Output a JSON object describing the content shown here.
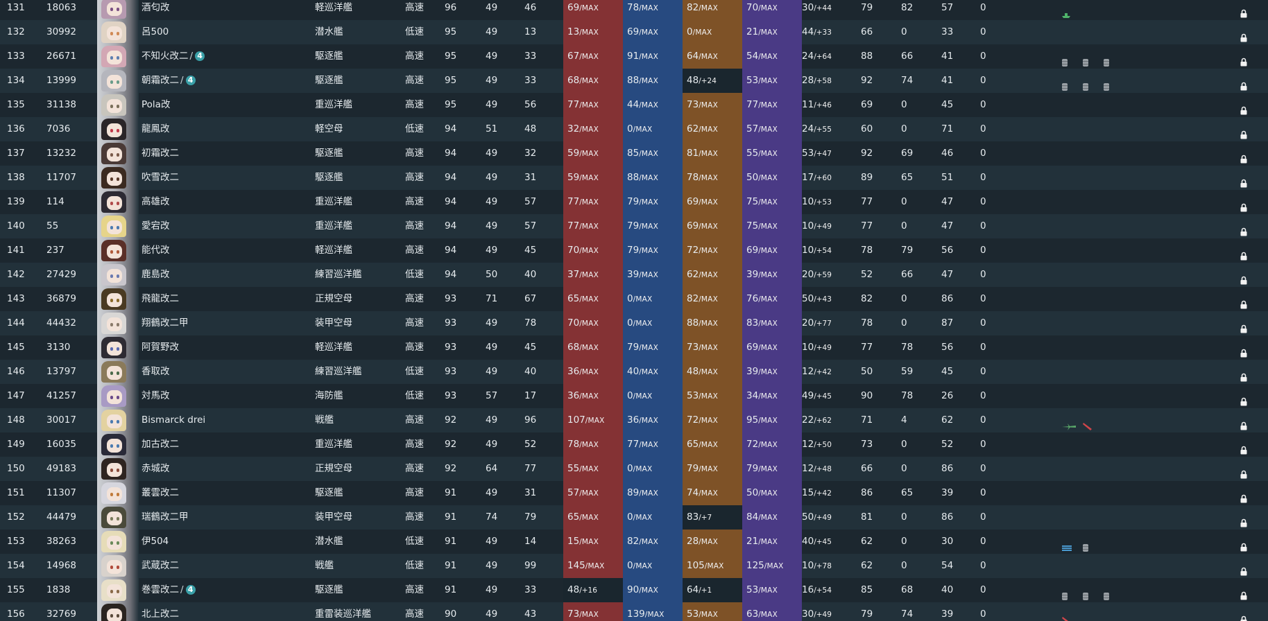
{
  "colors": {
    "firepower": "#843234",
    "torpedo": "#274a80",
    "anti_air": "#7e5227",
    "armor": "#4a3a85"
  },
  "max_label": "MAX",
  "rows": [
    {
      "num": "131",
      "id": "18063",
      "name": "酒匂改",
      "type": "軽巡洋艦",
      "speed": "高速",
      "lv": "96",
      "morale": "49",
      "hp": "46",
      "fp": "69",
      "fp_s": "/MAX",
      "tp": "78",
      "tp_s": "/MAX",
      "aa": "82",
      "aa_s": "/MAX",
      "ar": "70",
      "ar_s": "/MAX",
      "luck": "30",
      "luck_s": "/+44",
      "ev": "79",
      "asw": "82",
      "los": "57",
      "ex": "0",
      "hair": "#b79ab0",
      "eye": "#7a4f83",
      "equips": [
        "ship-icon-green"
      ]
    },
    {
      "num": "132",
      "id": "30992",
      "name": "呂500",
      "type": "潜水艦",
      "speed": "低速",
      "lv": "95",
      "morale": "49",
      "hp": "13",
      "fp": "13",
      "fp_s": "/MAX",
      "tp": "69",
      "tp_s": "/MAX",
      "aa": "0",
      "aa_s": "/MAX",
      "ar": "21",
      "ar_s": "/MAX",
      "luck": "44",
      "luck_s": "/+33",
      "ev": "66",
      "asw": "0",
      "los": "33",
      "ex": "0",
      "hair": "#e0d3c4",
      "eye": "#d08a55",
      "equips": []
    },
    {
      "num": "133",
      "id": "26671",
      "name": "不知火改二",
      "badge": "4",
      "type": "駆逐艦",
      "speed": "高速",
      "lv": "95",
      "morale": "49",
      "hp": "33",
      "fp": "67",
      "fp_s": "/MAX",
      "tp": "91",
      "tp_s": "/MAX",
      "aa": "64",
      "aa_s": "/MAX",
      "ar": "54",
      "ar_s": "/MAX",
      "luck": "24",
      "luck_s": "/+64",
      "ev": "88",
      "asw": "66",
      "los": "41",
      "ex": "0",
      "hair": "#d3a7b4",
      "eye": "#5d7fb0",
      "equips": [
        "drum-icon",
        "drum-icon",
        "drum-icon"
      ]
    },
    {
      "num": "134",
      "id": "13999",
      "name": "朝霜改二",
      "badge": "4",
      "type": "駆逐艦",
      "speed": "高速",
      "lv": "95",
      "morale": "49",
      "hp": "33",
      "fp": "68",
      "fp_s": "/MAX",
      "tp": "88",
      "tp_s": "/MAX",
      "aa": "48",
      "aa_s": "/+24",
      "aa_dark": true,
      "ar": "53",
      "ar_s": "/MAX",
      "luck": "28",
      "luck_s": "/+58",
      "ev": "92",
      "asw": "74",
      "los": "41",
      "ex": "0",
      "hair": "#b5b6bd",
      "eye": "#6a9c8a",
      "equips": [
        "drum-icon",
        "drum-icon",
        "drum-icon"
      ]
    },
    {
      "num": "135",
      "id": "31138",
      "name": "Pola改",
      "type": "重巡洋艦",
      "speed": "高速",
      "lv": "95",
      "morale": "49",
      "hp": "56",
      "fp": "77",
      "fp_s": "/MAX",
      "tp": "44",
      "tp_s": "/MAX",
      "aa": "73",
      "aa_s": "/MAX",
      "ar": "77",
      "ar_s": "/MAX",
      "luck": "11",
      "luck_s": "/+46",
      "ev": "69",
      "asw": "0",
      "los": "45",
      "ex": "0",
      "hair": "#c8c5bd",
      "eye": "#7a6f5a",
      "equips": []
    },
    {
      "num": "136",
      "id": "7036",
      "name": "龍鳳改",
      "type": "軽空母",
      "speed": "低速",
      "lv": "94",
      "morale": "51",
      "hp": "48",
      "fp": "32",
      "fp_s": "/MAX",
      "tp": "0",
      "tp_s": "/MAX",
      "aa": "62",
      "aa_s": "/MAX",
      "ar": "57",
      "ar_s": "/MAX",
      "luck": "24",
      "luck_s": "/+55",
      "ev": "60",
      "asw": "0",
      "los": "71",
      "ex": "0",
      "hair": "#2a2528",
      "eye": "#c23a4a",
      "equips": []
    },
    {
      "num": "137",
      "id": "13232",
      "name": "初霜改二",
      "type": "駆逐艦",
      "speed": "高速",
      "lv": "94",
      "morale": "49",
      "hp": "32",
      "fp": "59",
      "fp_s": "/MAX",
      "tp": "85",
      "tp_s": "/MAX",
      "aa": "81",
      "aa_s": "/MAX",
      "ar": "55",
      "ar_s": "/MAX",
      "luck": "53",
      "luck_s": "/+47",
      "ev": "92",
      "asw": "69",
      "los": "46",
      "ex": "0",
      "hair": "#4a3a36",
      "eye": "#7a5a4a",
      "equips": []
    },
    {
      "num": "138",
      "id": "11707",
      "name": "吹雪改二",
      "type": "駆逐艦",
      "speed": "高速",
      "lv": "94",
      "morale": "49",
      "hp": "31",
      "fp": "59",
      "fp_s": "/MAX",
      "tp": "88",
      "tp_s": "/MAX",
      "aa": "78",
      "aa_s": "/MAX",
      "ar": "50",
      "ar_s": "/MAX",
      "luck": "17",
      "luck_s": "/+60",
      "ev": "89",
      "asw": "65",
      "los": "51",
      "ex": "0",
      "hair": "#3b2a20",
      "eye": "#5a3a2a",
      "equips": []
    },
    {
      "num": "139",
      "id": "114",
      "name": "高雄改",
      "type": "重巡洋艦",
      "speed": "高速",
      "lv": "94",
      "morale": "49",
      "hp": "57",
      "fp": "77",
      "fp_s": "/MAX",
      "tp": "79",
      "tp_s": "/MAX",
      "aa": "69",
      "aa_s": "/MAX",
      "ar": "75",
      "ar_s": "/MAX",
      "luck": "10",
      "luck_s": "/+53",
      "ev": "77",
      "asw": "0",
      "los": "47",
      "ex": "0",
      "hair": "#2c2a33",
      "eye": "#b04a4a",
      "equips": []
    },
    {
      "num": "140",
      "id": "55",
      "name": "愛宕改",
      "type": "重巡洋艦",
      "speed": "高速",
      "lv": "94",
      "morale": "49",
      "hp": "57",
      "fp": "77",
      "fp_s": "/MAX",
      "tp": "79",
      "tp_s": "/MAX",
      "aa": "69",
      "aa_s": "/MAX",
      "ar": "75",
      "ar_s": "/MAX",
      "luck": "10",
      "luck_s": "/+49",
      "ev": "77",
      "asw": "0",
      "los": "47",
      "ex": "0",
      "hair": "#e6d48a",
      "eye": "#4a7ab0",
      "equips": []
    },
    {
      "num": "141",
      "id": "237",
      "name": "能代改",
      "type": "軽巡洋艦",
      "speed": "高速",
      "lv": "94",
      "morale": "49",
      "hp": "45",
      "fp": "70",
      "fp_s": "/MAX",
      "tp": "79",
      "tp_s": "/MAX",
      "aa": "72",
      "aa_s": "/MAX",
      "ar": "69",
      "ar_s": "/MAX",
      "luck": "10",
      "luck_s": "/+54",
      "ev": "78",
      "asw": "79",
      "los": "56",
      "ex": "0",
      "hair": "#5a2f28",
      "eye": "#b05a3a",
      "equips": []
    },
    {
      "num": "142",
      "id": "27429",
      "name": "鹿島改",
      "type": "練習巡洋艦",
      "speed": "低速",
      "lv": "94",
      "morale": "50",
      "hp": "40",
      "fp": "37",
      "fp_s": "/MAX",
      "tp": "39",
      "tp_s": "/MAX",
      "aa": "62",
      "aa_s": "/MAX",
      "ar": "39",
      "ar_s": "/MAX",
      "luck": "20",
      "luck_s": "/+59",
      "ev": "52",
      "asw": "66",
      "los": "47",
      "ex": "0",
      "hair": "#c9c6cc",
      "eye": "#6a7ab0",
      "equips": []
    },
    {
      "num": "143",
      "id": "36879",
      "name": "飛龍改二",
      "type": "正規空母",
      "speed": "高速",
      "lv": "93",
      "morale": "71",
      "hp": "67",
      "fp": "65",
      "fp_s": "/MAX",
      "tp": "0",
      "tp_s": "/MAX",
      "aa": "82",
      "aa_s": "/MAX",
      "ar": "76",
      "ar_s": "/MAX",
      "luck": "50",
      "luck_s": "/+43",
      "ev": "82",
      "asw": "0",
      "los": "86",
      "ex": "0",
      "hair": "#4a3a22",
      "eye": "#8a6a2a",
      "equips": []
    },
    {
      "num": "144",
      "id": "44432",
      "name": "翔鶴改二甲",
      "type": "装甲空母",
      "speed": "高速",
      "lv": "93",
      "morale": "49",
      "hp": "78",
      "fp": "70",
      "fp_s": "/MAX",
      "tp": "0",
      "tp_s": "/MAX",
      "aa": "88",
      "aa_s": "/MAX",
      "ar": "83",
      "ar_s": "/MAX",
      "luck": "20",
      "luck_s": "/+77",
      "ev": "78",
      "asw": "0",
      "los": "87",
      "ex": "0",
      "hair": "#d9d7d5",
      "eye": "#8a7a6a",
      "equips": []
    },
    {
      "num": "145",
      "id": "3130",
      "name": "阿賀野改",
      "type": "軽巡洋艦",
      "speed": "高速",
      "lv": "93",
      "morale": "49",
      "hp": "45",
      "fp": "68",
      "fp_s": "/MAX",
      "tp": "79",
      "tp_s": "/MAX",
      "aa": "73",
      "aa_s": "/MAX",
      "ar": "69",
      "ar_s": "/MAX",
      "luck": "10",
      "luck_s": "/+49",
      "ev": "77",
      "asw": "78",
      "los": "56",
      "ex": "0",
      "hair": "#2e2b33",
      "eye": "#5a6ab0",
      "equips": []
    },
    {
      "num": "146",
      "id": "13797",
      "name": "香取改",
      "type": "練習巡洋艦",
      "speed": "低速",
      "lv": "93",
      "morale": "49",
      "hp": "40",
      "fp": "36",
      "fp_s": "/MAX",
      "tp": "40",
      "tp_s": "/MAX",
      "aa": "48",
      "aa_s": "/MAX",
      "ar": "39",
      "ar_s": "/MAX",
      "luck": "12",
      "luck_s": "/+42",
      "ev": "50",
      "asw": "59",
      "los": "45",
      "ex": "0",
      "hair": "#8a7a5a",
      "eye": "#4a6a4a",
      "equips": []
    },
    {
      "num": "147",
      "id": "41257",
      "name": "対馬改",
      "type": "海防艦",
      "speed": "低速",
      "lv": "93",
      "morale": "57",
      "hp": "17",
      "fp": "36",
      "fp_s": "/MAX",
      "tp": "0",
      "tp_s": "/MAX",
      "aa": "53",
      "aa_s": "/MAX",
      "ar": "34",
      "ar_s": "/MAX",
      "luck": "49",
      "luck_s": "/+45",
      "ev": "90",
      "asw": "78",
      "los": "26",
      "ex": "0",
      "hair": "#a89ac4",
      "eye": "#6a4a8a",
      "equips": []
    },
    {
      "num": "148",
      "id": "30017",
      "name": "Bismarck drei",
      "type": "戦艦",
      "speed": "高速",
      "lv": "92",
      "morale": "49",
      "hp": "96",
      "fp": "107",
      "fp_s": "/MAX",
      "tp": "36",
      "tp_s": "/MAX",
      "aa": "72",
      "aa_s": "/MAX",
      "ar": "95",
      "ar_s": "/MAX",
      "luck": "22",
      "luck_s": "/+62",
      "ev": "71",
      "asw": "4",
      "los": "62",
      "ex": "0",
      "hair": "#e3d2a0",
      "eye": "#4a7ab0",
      "equips": [
        "plane-icon-green",
        "torpedo-icon-red"
      ]
    },
    {
      "num": "149",
      "id": "16035",
      "name": "加古改二",
      "type": "重巡洋艦",
      "speed": "高速",
      "lv": "92",
      "morale": "49",
      "hp": "52",
      "fp": "78",
      "fp_s": "/MAX",
      "tp": "77",
      "tp_s": "/MAX",
      "aa": "65",
      "aa_s": "/MAX",
      "ar": "72",
      "ar_s": "/MAX",
      "luck": "12",
      "luck_s": "/+50",
      "ev": "73",
      "asw": "0",
      "los": "52",
      "ex": "0",
      "hair": "#2a2a38",
      "eye": "#4a7ab0",
      "equips": []
    },
    {
      "num": "150",
      "id": "49183",
      "name": "赤城改",
      "type": "正規空母",
      "speed": "高速",
      "lv": "92",
      "morale": "64",
      "hp": "77",
      "fp": "55",
      "fp_s": "/MAX",
      "tp": "0",
      "tp_s": "/MAX",
      "aa": "79",
      "aa_s": "/MAX",
      "ar": "79",
      "ar_s": "/MAX",
      "luck": "12",
      "luck_s": "/+48",
      "ev": "66",
      "asw": "0",
      "los": "86",
      "ex": "0",
      "hair": "#2e2420",
      "eye": "#8a4a3a",
      "equips": []
    },
    {
      "num": "151",
      "id": "11307",
      "name": "叢雲改二",
      "type": "駆逐艦",
      "speed": "高速",
      "lv": "91",
      "morale": "49",
      "hp": "31",
      "fp": "57",
      "fp_s": "/MAX",
      "tp": "89",
      "tp_s": "/MAX",
      "aa": "74",
      "aa_s": "/MAX",
      "ar": "50",
      "ar_s": "/MAX",
      "luck": "15",
      "luck_s": "/+42",
      "ev": "86",
      "asw": "65",
      "los": "39",
      "ex": "0",
      "hair": "#d6d6de",
      "eye": "#c07a3a",
      "equips": []
    },
    {
      "num": "152",
      "id": "44479",
      "name": "瑞鶴改二甲",
      "type": "装甲空母",
      "speed": "高速",
      "lv": "91",
      "morale": "74",
      "hp": "79",
      "fp": "65",
      "fp_s": "/MAX",
      "tp": "0",
      "tp_s": "/MAX",
      "aa": "83",
      "aa_s": "/+7",
      "aa_dark": true,
      "ar": "84",
      "ar_s": "/MAX",
      "luck": "50",
      "luck_s": "/+49",
      "ev": "81",
      "asw": "0",
      "los": "86",
      "ex": "0",
      "hair": "#4a4a3a",
      "eye": "#7a7a5a",
      "equips": []
    },
    {
      "num": "153",
      "id": "38263",
      "name": "伊504",
      "type": "潜水艦",
      "speed": "低速",
      "lv": "91",
      "morale": "49",
      "hp": "14",
      "fp": "15",
      "fp_s": "/MAX",
      "tp": "82",
      "tp_s": "/MAX",
      "aa": "28",
      "aa_s": "/MAX",
      "ar": "21",
      "ar_s": "/MAX",
      "luck": "40",
      "luck_s": "/+45",
      "ev": "62",
      "asw": "0",
      "los": "30",
      "ex": "0",
      "hair": "#e6dcb8",
      "eye": "#6a8a5a",
      "equips": [
        "sonar-icon-blue",
        "drum-icon"
      ]
    },
    {
      "num": "154",
      "id": "14968",
      "name": "武蔵改二",
      "type": "戦艦",
      "speed": "低速",
      "lv": "91",
      "morale": "49",
      "hp": "99",
      "fp": "145",
      "fp_s": "/MAX",
      "tp": "0",
      "tp_s": "/MAX",
      "aa": "105",
      "aa_s": "/MAX",
      "ar": "125",
      "ar_s": "/MAX",
      "luck": "10",
      "luck_s": "/+78",
      "ev": "62",
      "asw": "0",
      "los": "54",
      "ex": "0",
      "hair": "#d8d2cc",
      "eye": "#b04a3a",
      "equips": []
    },
    {
      "num": "155",
      "id": "1838",
      "name": "巻雲改二",
      "badge": "4",
      "type": "駆逐艦",
      "speed": "高速",
      "lv": "91",
      "morale": "49",
      "hp": "33",
      "fp": "48",
      "fp_s": "/+16",
      "fp_dark": true,
      "tp": "90",
      "tp_s": "/MAX",
      "aa": "64",
      "aa_s": "/+1",
      "aa_dark": true,
      "ar": "53",
      "ar_s": "/MAX",
      "luck": "16",
      "luck_s": "/+54",
      "ev": "85",
      "asw": "68",
      "los": "40",
      "ex": "0",
      "hair": "#e8dfc8",
      "eye": "#8a6a4a",
      "equips": [
        "drum-icon",
        "drum-icon",
        "drum-icon"
      ]
    },
    {
      "num": "156",
      "id": "32769",
      "name": "北上改二",
      "type": "重雷装巡洋艦",
      "speed": "高速",
      "lv": "90",
      "morale": "49",
      "hp": "43",
      "fp": "73",
      "fp_s": "/MAX",
      "tp": "139",
      "tp_s": "/MAX",
      "aa": "53",
      "aa_s": "/MAX",
      "ar": "63",
      "ar_s": "/MAX",
      "luck": "30",
      "luck_s": "/+49",
      "ev": "79",
      "asw": "74",
      "los": "39",
      "ex": "0",
      "hair": "#2a2420",
      "eye": "#5a4a3a",
      "equips": [
        "torpedo-icon-red"
      ]
    }
  ]
}
